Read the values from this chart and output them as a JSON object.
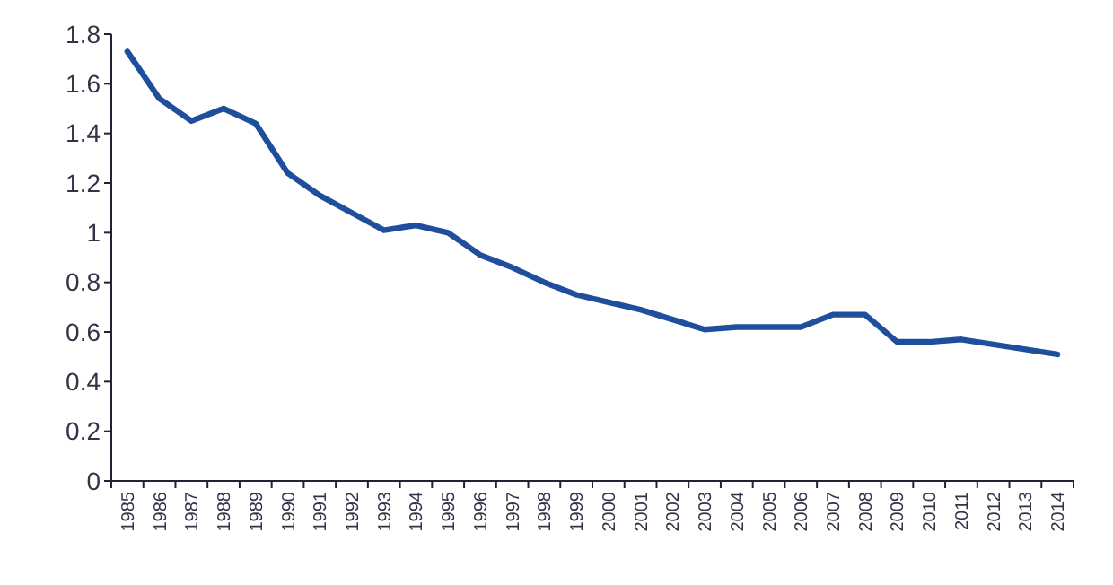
{
  "chart_data": {
    "type": "line",
    "categories": [
      "1985",
      "1986",
      "1987",
      "1988",
      "1989",
      "1990",
      "1991",
      "1992",
      "1993",
      "1994",
      "1995",
      "1996",
      "1997",
      "1998",
      "1999",
      "2000",
      "2001",
      "2002",
      "2003",
      "2004",
      "2005",
      "2006",
      "2007",
      "2008",
      "2009",
      "2010",
      "2011",
      "2012",
      "2013",
      "2014"
    ],
    "series": [
      {
        "color": "#1f4e9c",
        "values": [
          1.73,
          1.54,
          1.45,
          1.5,
          1.44,
          1.24,
          1.15,
          1.08,
          1.01,
          1.03,
          1.0,
          0.91,
          0.86,
          0.8,
          0.75,
          0.72,
          0.69,
          0.65,
          0.61,
          0.62,
          0.62,
          0.62,
          0.67,
          0.67,
          0.56,
          0.56,
          0.57,
          0.55,
          0.53,
          0.51
        ]
      }
    ],
    "ylim": [
      0,
      1.8
    ],
    "yticks": [
      0,
      0.2,
      0.4,
      0.6,
      0.8,
      1,
      1.2,
      1.4,
      1.6,
      1.8
    ],
    "marker": "none",
    "line_style": "solid"
  }
}
